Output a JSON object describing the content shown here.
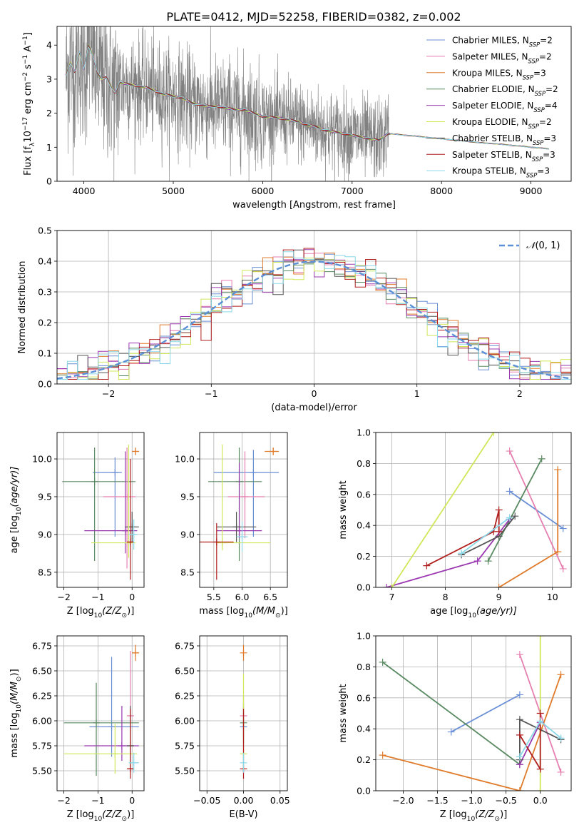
{
  "figure_title": "PLATE=0412, MJD=52258, FIBERID=0382, z=0.002",
  "colors": {
    "Chabrier MILES": "#6a8fd6",
    "Salpeter MILES": "#e67fb0",
    "Kroupa MILES": "#e07b2b",
    "Chabrier ELODIE": "#5a8a62",
    "Salpeter ELODIE": "#9a38b0",
    "Kroupa ELODIE": "#cfe85a",
    "Chabrier STELIB": "#555555",
    "Salpeter STELIB": "#b01e1e",
    "Kroupa STELIB": "#8ad8e8",
    "data": "#808080",
    "normal": "#5b8fd6"
  },
  "chart_data": [
    {
      "id": "spectrum",
      "type": "line",
      "title": "",
      "xlabel": "wavelength [Angstrom, rest frame]",
      "ylabel_parts": [
        "Flux [f",
        "λ",
        "10",
        "−17",
        " erg cm",
        "−2",
        " s",
        "−1",
        " A",
        "−1",
        "]"
      ],
      "xlim": [
        3700,
        9450
      ],
      "ylim": [
        0,
        4.55
      ],
      "xticks": [
        4000,
        5000,
        6000,
        7000,
        8000,
        9000
      ],
      "yticks": [
        0,
        1,
        2,
        3,
        4
      ],
      "legend_position": "upper right",
      "legend": [
        {
          "name": "Chabrier MILES",
          "nssp": "2"
        },
        {
          "name": "Salpeter MILES",
          "nssp": "2"
        },
        {
          "name": "Kroupa MILES",
          "nssp": "3"
        },
        {
          "name": "Chabrier ELODIE",
          "nssp": "2"
        },
        {
          "name": "Salpeter ELODIE",
          "nssp": "4"
        },
        {
          "name": "Kroupa ELODIE",
          "nssp": "2"
        },
        {
          "name": "Chabrier STELIB",
          "nssp": "3"
        },
        {
          "name": "Salpeter STELIB",
          "nssp": "3"
        },
        {
          "name": "Kroupa STELIB",
          "nssp": "3"
        }
      ],
      "data_range": [
        3800,
        7410
      ],
      "model_curve": {
        "x": [
          3800,
          3850,
          3900,
          3950,
          4000,
          4050,
          4100,
          4150,
          4200,
          4250,
          4300,
          4350,
          4400,
          4500,
          4600,
          4700,
          4800,
          4900,
          5000,
          5100,
          5200,
          5300,
          5400,
          5500,
          5600,
          5700,
          5800,
          5900,
          6000,
          6100,
          6200,
          6300,
          6400,
          6500,
          6600,
          6700,
          6800,
          6900,
          7000,
          7100,
          7200,
          7300,
          7400,
          7500,
          7600,
          7700,
          7800,
          7900,
          8000,
          8100,
          8200,
          8300,
          8400,
          8500,
          8600,
          8700,
          8800,
          8900,
          9000,
          9100,
          9200
        ],
        "y": [
          3.1,
          3.5,
          3.2,
          3.8,
          3.3,
          4.0,
          3.7,
          3.2,
          3.0,
          3.05,
          2.8,
          2.6,
          2.9,
          2.85,
          2.8,
          2.75,
          2.65,
          2.55,
          2.5,
          2.45,
          2.3,
          2.25,
          2.2,
          2.2,
          2.15,
          2.1,
          2.1,
          2.0,
          1.9,
          1.88,
          1.85,
          1.8,
          1.75,
          1.65,
          1.6,
          1.5,
          1.45,
          1.4,
          1.35,
          1.3,
          1.25,
          1.2,
          1.4,
          1.38,
          1.35,
          1.33,
          1.3,
          1.27,
          1.25,
          1.22,
          1.2,
          1.17,
          1.14,
          1.12,
          1.1,
          1.08,
          1.05,
          1.03,
          1.0,
          0.98,
          0.95
        ]
      }
    },
    {
      "id": "residuals",
      "type": "line",
      "xlabel": "(data-model)/error",
      "ylabel": "Normed distribution",
      "xlim": [
        -2.5,
        2.5
      ],
      "ylim": [
        0,
        0.5
      ],
      "xticks": [
        -2,
        -1,
        0,
        1,
        2
      ],
      "yticks": [
        0.0,
        0.1,
        0.2,
        0.3,
        0.4,
        0.5
      ],
      "legend": [
        {
          "name": "N(0,1)",
          "label_prefix": "𝒩",
          "label_suffix": "(0, 1)"
        }
      ],
      "legend_position": "upper right",
      "grid": true,
      "bin_width": 0.1,
      "bin_start": -2.5,
      "histogram_models": [
        "Chabrier MILES",
        "Salpeter MILES",
        "Kroupa MILES",
        "Chabrier ELODIE",
        "Salpeter ELODIE",
        "Kroupa ELODIE",
        "Chabrier STELIB",
        "Salpeter STELIB",
        "Kroupa STELIB"
      ]
    },
    {
      "id": "age-vs-Z",
      "type": "scatter",
      "xlabel_parts": [
        "Z [log",
        "10",
        "(Z/Z",
        "⊙",
        ")]"
      ],
      "ylabel_parts": [
        "age  [log",
        "10",
        "(age/yr)]"
      ],
      "xlim": [
        -2.2,
        0.35
      ],
      "ylim": [
        8.3,
        10.35
      ],
      "xticks": [
        -2,
        -1,
        0
      ],
      "yticks": [
        8.5,
        9.0,
        9.5,
        10.0
      ],
      "grid": true,
      "points": [
        {
          "model": "Kroupa MILES",
          "x": 0.1,
          "y": 10.1,
          "xerr": [
            0.1,
            0.1
          ],
          "yerr": [
            0.05,
            0.05
          ]
        },
        {
          "model": "Chabrier MILES",
          "x": -0.5,
          "y": 9.82,
          "xerr": [
            0.65,
            0.2
          ],
          "yerr": [
            0.85,
            0.2
          ]
        },
        {
          "model": "Chabrier ELODIE",
          "x": -1.1,
          "y": 9.7,
          "xerr": [
            0.95,
            1.2
          ],
          "yerr": [
            1.05,
            0.45
          ]
        },
        {
          "model": "Salpeter MILES",
          "x": -0.15,
          "y": 9.5,
          "xerr": [
            0.7,
            0.25
          ],
          "yerr": [
            0.95,
            0.65
          ]
        },
        {
          "model": "Salpeter ELODIE",
          "x": -0.2,
          "y": 9.05,
          "xerr": [
            1.2,
            0.35
          ],
          "yerr": [
            0.3,
            1.05
          ]
        },
        {
          "model": "Chabrier STELIB",
          "x": 0.0,
          "y": 9.1,
          "xerr": [
            0.2,
            0.2
          ],
          "yerr": [
            0.2,
            0.2
          ]
        },
        {
          "model": "Kroupa ELODIE",
          "x": -0.1,
          "y": 8.89,
          "xerr": [
            1.1,
            0.2
          ],
          "yerr": [
            0.2,
            1.3
          ]
        },
        {
          "model": "Salpeter STELIB",
          "x": -0.05,
          "y": 8.9,
          "xerr": [
            0.1,
            0.1
          ],
          "yerr": [
            0.5,
            1.1
          ]
        },
        {
          "model": "Kroupa STELIB",
          "x": 0.05,
          "y": 9.0,
          "xerr": [
            0.15,
            0.1
          ],
          "yerr": [
            0.2,
            0.2
          ]
        }
      ]
    },
    {
      "id": "age-vs-mass",
      "type": "scatter",
      "xlabel_parts": [
        "mass [log",
        "10",
        "(M/M",
        "⊙",
        ")]"
      ],
      "xlim": [
        5.25,
        6.8
      ],
      "ylim": [
        8.3,
        10.35
      ],
      "xticks": [
        5.5,
        6.0,
        6.5
      ],
      "xtick_labels": [
        "5.5",
        "6.0",
        "6.5"
      ],
      "yticks": [
        8.5,
        9.0,
        9.5,
        10.0
      ],
      "grid": true,
      "points": [
        {
          "model": "Kroupa MILES",
          "x": 6.55,
          "y": 10.1,
          "xerr": [
            0.15,
            0.1
          ],
          "yerr": [
            0.05,
            0.05
          ]
        },
        {
          "model": "Chabrier MILES",
          "x": 6.2,
          "y": 9.82,
          "xerr": [
            0.7,
            0.45
          ],
          "yerr": [
            0.85,
            0.3
          ]
        },
        {
          "model": "Chabrier ELODIE",
          "x": 5.95,
          "y": 9.7,
          "xerr": [
            0.55,
            0.4
          ],
          "yerr": [
            1.05,
            0.45
          ]
        },
        {
          "model": "Salpeter MILES",
          "x": 6.05,
          "y": 9.5,
          "xerr": [
            0.3,
            0.35
          ],
          "yerr": [
            0.55,
            0.6
          ]
        },
        {
          "model": "Salpeter ELODIE",
          "x": 5.95,
          "y": 9.05,
          "xerr": [
            0.4,
            0.4
          ],
          "yerr": [
            0.1,
            0.9
          ]
        },
        {
          "model": "Chabrier STELIB",
          "x": 5.9,
          "y": 9.1,
          "xerr": [
            0.35,
            0.35
          ],
          "yerr": [
            0.2,
            0.2
          ]
        },
        {
          "model": "Kroupa ELODIE",
          "x": 5.65,
          "y": 8.89,
          "xerr": [
            0.1,
            0.85
          ],
          "yerr": [
            0.1,
            1.3
          ]
        },
        {
          "model": "Salpeter STELIB",
          "x": 5.55,
          "y": 8.9,
          "xerr": [
            0.35,
            0.3
          ],
          "yerr": [
            0.5,
            0.25
          ]
        },
        {
          "model": "Kroupa STELIB",
          "x": 6.0,
          "y": 8.97,
          "xerr": [
            0.1,
            0.1
          ],
          "yerr": [
            0.2,
            0.2
          ]
        }
      ]
    },
    {
      "id": "weight-vs-age",
      "type": "line",
      "xlabel_parts": [
        "age  [log",
        "10",
        "(age/yr)]"
      ],
      "ylabel": "mass weight",
      "xlim": [
        6.7,
        10.35
      ],
      "ylim": [
        0,
        1
      ],
      "xticks": [
        7,
        8,
        9,
        10
      ],
      "yticks": [
        0.0,
        0.2,
        0.4,
        0.6,
        0.8,
        1.0
      ],
      "grid": true,
      "series": [
        {
          "model": "Chabrier MILES",
          "x": [
            9.2,
            10.2
          ],
          "y": [
            0.62,
            0.38
          ]
        },
        {
          "model": "Salpeter MILES",
          "x": [
            9.2,
            10.2
          ],
          "y": [
            0.88,
            0.12
          ]
        },
        {
          "model": "Kroupa MILES",
          "x": [
            9.0,
            10.1,
            10.1
          ],
          "y": [
            0.0,
            0.23,
            0.76
          ]
        },
        {
          "model": "Chabrier ELODIE",
          "x": [
            8.8,
            9.8
          ],
          "y": [
            0.17,
            0.83
          ]
        },
        {
          "model": "Salpeter ELODIE",
          "x": [
            6.9,
            8.6,
            9.2
          ],
          "y": [
            0.0,
            0.17,
            0.44
          ]
        },
        {
          "model": "Kroupa ELODIE",
          "x": [
            7.0,
            8.9
          ],
          "y": [
            0.0,
            1.0
          ]
        },
        {
          "model": "Chabrier STELIB",
          "x": [
            8.3,
            9.0,
            9.3
          ],
          "y": [
            0.21,
            0.33,
            0.46
          ]
        },
        {
          "model": "Salpeter STELIB",
          "x": [
            7.65,
            8.9,
            9.0,
            9.0
          ],
          "y": [
            0.14,
            0.36,
            0.5,
            0.36
          ]
        },
        {
          "model": "Kroupa STELIB",
          "x": [
            8.3,
            9.2
          ],
          "y": [
            0.22,
            0.45
          ]
        }
      ]
    },
    {
      "id": "mass-vs-Z",
      "type": "scatter",
      "xlabel_parts": [
        "Z [log",
        "10",
        "(Z/Z",
        "⊙",
        ")]"
      ],
      "ylabel_parts": [
        "mass [log",
        "10",
        "(M/M",
        "⊙",
        ")]"
      ],
      "xlim": [
        -2.2,
        0.35
      ],
      "ylim": [
        5.3,
        6.85
      ],
      "xticks": [
        -2,
        -1,
        0
      ],
      "yticks": [
        5.5,
        5.75,
        6.0,
        6.25,
        6.5,
        6.75
      ],
      "ytick_labels": [
        "5.50",
        "5.75",
        "6.00",
        "6.25",
        "6.50",
        "6.75"
      ],
      "grid": true,
      "points": [
        {
          "model": "Kroupa MILES",
          "x": 0.1,
          "y": 6.68,
          "xerr": [
            0.1,
            0.1
          ],
          "yerr": [
            0.08,
            0.08
          ]
        },
        {
          "model": "Salpeter MILES",
          "x": -0.05,
          "y": 6.05,
          "xerr": [
            0.05,
            0.05
          ],
          "yerr": [
            0.28,
            0.65
          ]
        },
        {
          "model": "Chabrier MILES",
          "x": -0.6,
          "y": 5.94,
          "xerr": [
            0.65,
            0.8
          ],
          "yerr": [
            0.3,
            0.7
          ]
        },
        {
          "model": "Chabrier ELODIE",
          "x": -1.05,
          "y": 5.98,
          "xerr": [
            0.95,
            1.25
          ],
          "yerr": [
            0.53,
            0.4
          ]
        },
        {
          "model": "Salpeter ELODIE",
          "x": -0.3,
          "y": 5.75,
          "xerr": [
            1.1,
            0.5
          ],
          "yerr": [
            0.15,
            0.4
          ]
        },
        {
          "model": "Kroupa ELODIE",
          "x": -0.5,
          "y": 5.67,
          "xerr": [
            1.5,
            0.65
          ],
          "yerr": [
            0.2,
            0.3
          ]
        },
        {
          "model": "Chabrier STELIB",
          "x": -0.05,
          "y": 5.75,
          "xerr": [
            0.1,
            0.1
          ],
          "yerr": [
            0.25,
            0.4
          ]
        },
        {
          "model": "Salpeter STELIB",
          "x": -0.05,
          "y": 5.52,
          "xerr": [
            0.08,
            0.1
          ],
          "yerr": [
            0.1,
            0.6
          ]
        },
        {
          "model": "Kroupa STELIB",
          "x": 0.05,
          "y": 5.58,
          "xerr": [
            0.15,
            0.15
          ],
          "yerr": [
            0.1,
            0.1
          ]
        }
      ]
    },
    {
      "id": "mass-vs-ebv",
      "type": "scatter",
      "xlabel": "E(B-V)",
      "xlim": [
        -0.06,
        0.06
      ],
      "ylim": [
        5.3,
        6.85
      ],
      "xticks": [
        -0.05,
        0.0,
        0.05
      ],
      "xtick_labels": [
        "−0.05",
        "0.00",
        "0.05"
      ],
      "yticks": [
        5.5,
        5.75,
        6.0,
        6.25,
        6.5,
        6.75
      ],
      "ytick_labels": [
        "5.50",
        "5.75",
        "6.00",
        "6.25",
        "6.50",
        "6.75"
      ],
      "grid": true,
      "points": [
        {
          "model": "Kroupa MILES",
          "x": 0.0,
          "y": 6.68,
          "yerr": [
            0.08,
            0.08
          ]
        },
        {
          "model": "Salpeter MILES",
          "x": 0.0,
          "y": 6.05,
          "yerr": [
            0.2,
            0.2
          ]
        },
        {
          "model": "Chabrier MILES",
          "x": 0.0,
          "y": 5.94,
          "yerr": [
            0.2,
            0.2
          ]
        },
        {
          "model": "Chabrier ELODIE",
          "x": 0.0,
          "y": 5.98,
          "yerr": [
            0.2,
            0.2
          ]
        },
        {
          "model": "Kroupa ELODIE",
          "x": 0.0,
          "y": 5.67,
          "yerr": [
            0.15,
            0.8
          ]
        },
        {
          "model": "Salpeter STELIB",
          "x": 0.0,
          "y": 5.52,
          "yerr": [
            0.1,
            0.6
          ]
        },
        {
          "model": "Kroupa STELIB",
          "x": 0.0,
          "y": 5.58,
          "yerr": [
            0.1,
            0.1
          ]
        }
      ]
    },
    {
      "id": "weight-vs-Z",
      "type": "line",
      "xlabel_parts": [
        "Z [log",
        "10",
        "(Z/Z",
        "⊙",
        ")]"
      ],
      "ylabel": "mass weight",
      "xlim": [
        -2.4,
        0.45
      ],
      "ylim": [
        0,
        1
      ],
      "xticks": [
        -2.0,
        -1.5,
        -1.0,
        -0.5,
        0.0
      ],
      "xtick_labels": [
        "−2.0",
        "−1.5",
        "−1.0",
        "−0.5",
        "0.0"
      ],
      "yticks": [
        0.0,
        0.2,
        0.4,
        0.6,
        0.8,
        1.0
      ],
      "grid": true,
      "series": [
        {
          "model": "Chabrier MILES",
          "x": [
            -1.3,
            -0.3
          ],
          "y": [
            0.38,
            0.62
          ]
        },
        {
          "model": "Salpeter MILES",
          "x": [
            -0.3,
            0.3
          ],
          "y": [
            0.88,
            0.12
          ]
        },
        {
          "model": "Kroupa MILES",
          "x": [
            -2.3,
            -0.3,
            0.3
          ],
          "y": [
            0.23,
            0.0,
            0.75
          ]
        },
        {
          "model": "Chabrier ELODIE",
          "x": [
            -2.3,
            -0.3
          ],
          "y": [
            0.83,
            0.17
          ]
        },
        {
          "model": "Salpeter ELODIE",
          "x": [
            -0.3,
            0.0,
            -0.3
          ],
          "y": [
            0.17,
            0.44,
            0.17
          ]
        },
        {
          "model": "Kroupa ELODIE",
          "x": [
            0.0,
            0.0
          ],
          "y": [
            0.0,
            1.0
          ]
        },
        {
          "model": "Chabrier STELIB",
          "x": [
            -0.3,
            -0.3,
            0.3
          ],
          "y": [
            0.2,
            0.46,
            0.33
          ]
        },
        {
          "model": "Salpeter STELIB",
          "x": [
            -0.3,
            0.0,
            0.0
          ],
          "y": [
            0.36,
            0.14,
            0.5
          ]
        },
        {
          "model": "Kroupa STELIB",
          "x": [
            -0.3,
            0.0,
            0.3
          ],
          "y": [
            0.22,
            0.45,
            0.34
          ]
        }
      ]
    }
  ]
}
